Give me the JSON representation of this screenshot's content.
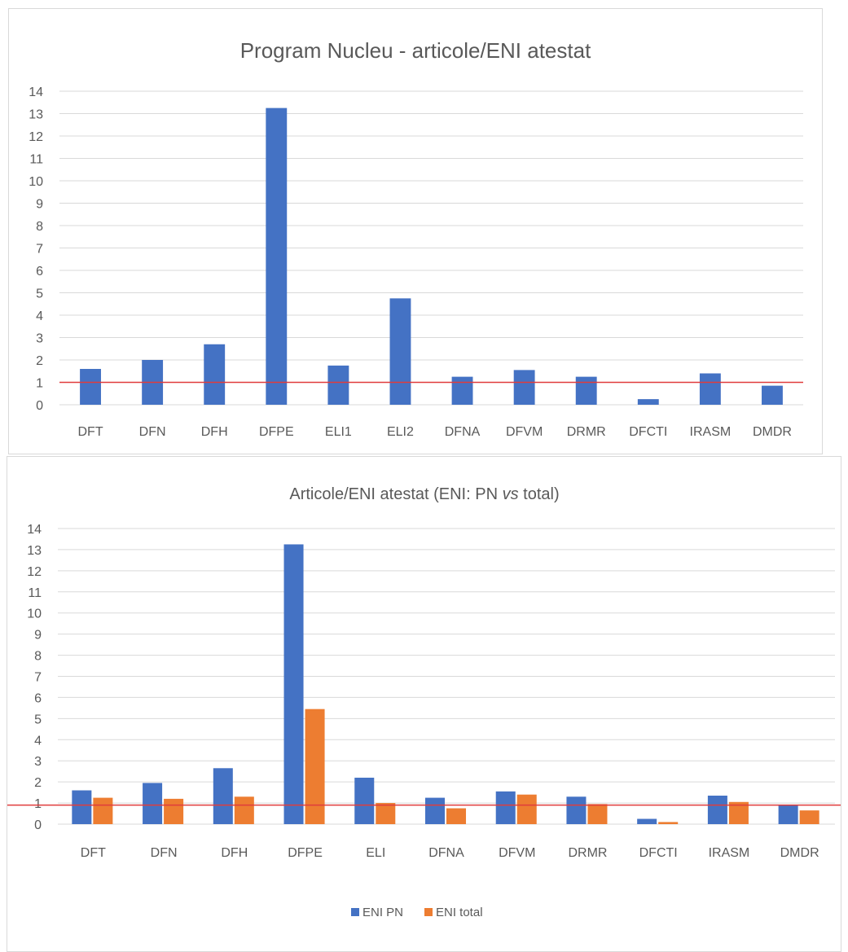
{
  "charts": [
    {
      "title": "Program Nucleu - articole/ENI atestat",
      "chart_data": {
        "type": "bar",
        "title": "Program Nucleu - articole/ENI atestat",
        "categories": [
          "DFT",
          "DFN",
          "DFH",
          "DFPE",
          "ELI1",
          "ELI2",
          "DFNA",
          "DFVM",
          "DRMR",
          "DFCTI",
          "IRASM",
          "DMDR"
        ],
        "series": [
          {
            "name": "",
            "color": "#4472C4",
            "values": [
              1.6,
              2.0,
              2.7,
              13.25,
              1.75,
              4.75,
              1.25,
              1.55,
              1.25,
              0.25,
              1.4,
              0.85
            ]
          }
        ],
        "yticks": [
          "0",
          "1",
          "2",
          "3",
          "4",
          "5",
          "6",
          "7",
          "8",
          "9",
          "10",
          "11",
          "12",
          "13",
          "14"
        ],
        "ylim": [
          0,
          14
        ],
        "reference_line": {
          "value": 1,
          "color": "#E03C3C"
        },
        "grid": true,
        "legend": false
      }
    },
    {
      "title_parts": [
        "Articole/ENI atestat (ENI: PN ",
        "vs",
        " total)"
      ],
      "chart_data": {
        "type": "bar",
        "title": "Articole/ENI atestat (ENI: PN vs total)",
        "categories": [
          "DFT",
          "DFN",
          "DFH",
          "DFPE",
          "ELI",
          "DFNA",
          "DFVM",
          "DRMR",
          "DFCTI",
          "IRASM",
          "DMDR"
        ],
        "series": [
          {
            "name": "ENI PN",
            "color": "#4472C4",
            "values": [
              1.6,
              1.95,
              2.65,
              13.25,
              2.2,
              1.25,
              1.55,
              1.3,
              0.25,
              1.35,
              0.9
            ]
          },
          {
            "name": "ENI total",
            "color": "#ED7D31",
            "values": [
              1.25,
              1.2,
              1.3,
              5.45,
              1.0,
              0.75,
              1.4,
              0.95,
              0.1,
              1.05,
              0.65
            ]
          }
        ],
        "yticks": [
          "0",
          "1",
          "2",
          "3",
          "4",
          "5",
          "6",
          "7",
          "8",
          "9",
          "10",
          "11",
          "12",
          "13",
          "14"
        ],
        "ylim": [
          0,
          14
        ],
        "reference_line": {
          "value": 0.9,
          "color": "#E03C3C"
        },
        "grid": true,
        "legend": "bottom"
      }
    }
  ]
}
